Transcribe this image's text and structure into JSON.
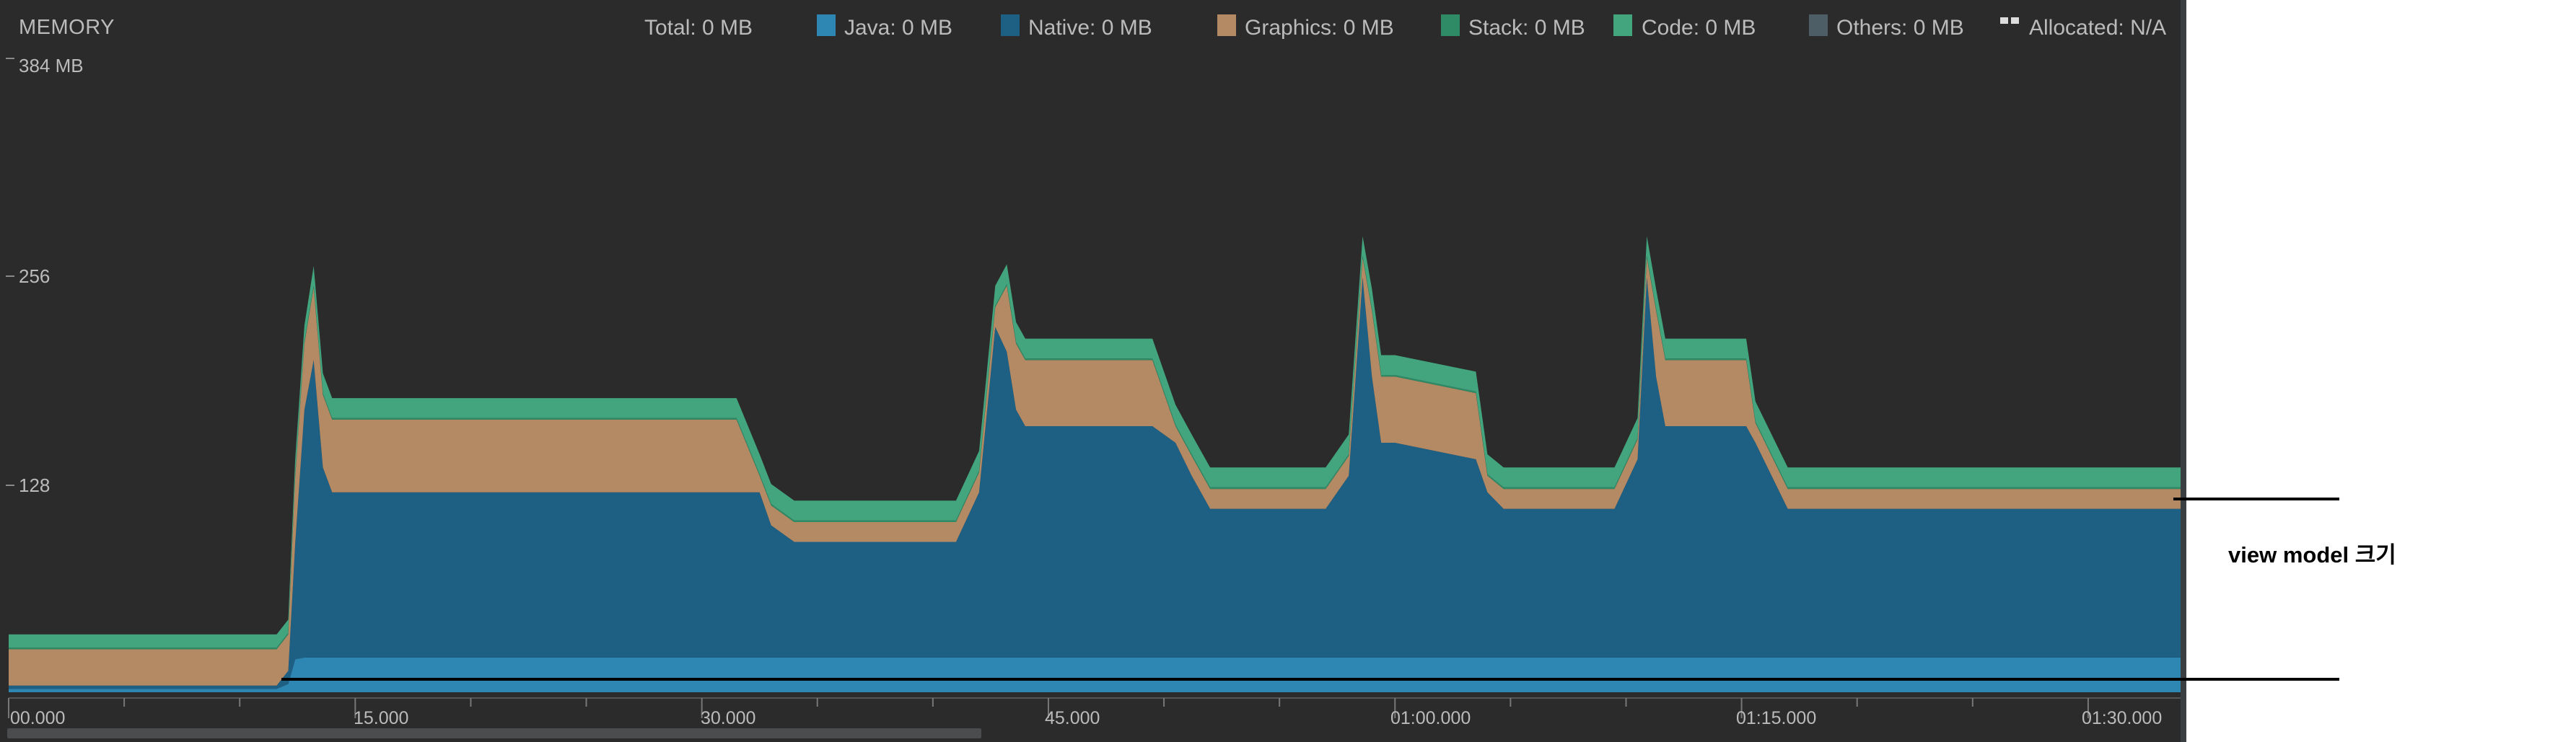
{
  "header": {
    "title": "MEMORY",
    "total_label": "Total: 0 MB",
    "java_label": "Java: 0 MB",
    "native_label": "Native: 0 MB",
    "graphics_label": "Graphics: 0 MB",
    "stack_label": "Stack: 0 MB",
    "code_label": "Code: 0 MB",
    "others_label": "Others: 0 MB",
    "allocated_label": "Allocated: N/A"
  },
  "colors": {
    "java": "#2e86b3",
    "native": "#1e5f84",
    "graphics": "#b48a64",
    "stack": "#2e8b66",
    "code": "#43a57e",
    "others": "#4d5e66",
    "background": "#2b2b2b"
  },
  "y_axis": {
    "top_label": "384 MB",
    "labels": [
      "256",
      "128"
    ]
  },
  "x_axis": {
    "labels": [
      "00.000",
      "15.000",
      "30.000",
      "45.000",
      "01:00.000",
      "01:15.000",
      "01:30.000"
    ]
  },
  "annotation": "view model 크기",
  "chart_data": {
    "type": "area",
    "stacked": true,
    "x_unit": "seconds",
    "y_unit": "MB",
    "ylim": [
      0,
      384
    ],
    "xlim": [
      0,
      94
    ],
    "x": [
      0,
      11.6,
      12.1,
      12.4,
      12.8,
      13.2,
      13.6,
      14.0,
      27.0,
      30.0,
      31.5,
      32.5,
      33.0,
      34.0,
      41.0,
      42.0,
      42.7,
      43.2,
      43.6,
      44.0,
      49.5,
      50.5,
      51.2,
      52.0,
      57.0,
      58.0,
      58.6,
      59.0,
      59.4,
      60.0,
      63.5,
      64.0,
      64.7,
      65.3,
      69.5,
      70.5,
      70.9,
      71.3,
      71.7,
      72.2,
      75.2,
      75.6,
      76.3,
      77.0,
      94.0
    ],
    "series": [
      {
        "name": "Java",
        "values": [
          2,
          2,
          5,
          20,
          21,
          21,
          21,
          21,
          21,
          21,
          21,
          21,
          21,
          21,
          21,
          21,
          21,
          21,
          21,
          21,
          21,
          21,
          21,
          21,
          21,
          21,
          21,
          21,
          21,
          21,
          21,
          21,
          21,
          21,
          21,
          21,
          21,
          21,
          21,
          21,
          21,
          21,
          21,
          21,
          21
        ]
      },
      {
        "name": "Native",
        "values": [
          2,
          2,
          8,
          70,
          150,
          180,
          115,
          100,
          100,
          100,
          100,
          100,
          80,
          70,
          70,
          100,
          200,
          185,
          150,
          140,
          140,
          130,
          110,
          90,
          90,
          110,
          230,
          170,
          130,
          130,
          120,
          100,
          90,
          90,
          90,
          120,
          230,
          170,
          140,
          140,
          140,
          130,
          110,
          90,
          90
        ]
      },
      {
        "name": "Graphics",
        "values": [
          22,
          22,
          22,
          40,
          40,
          44,
          44,
          44,
          44,
          44,
          44,
          10,
          12,
          12,
          12,
          12,
          12,
          40,
          40,
          40,
          40,
          10,
          12,
          12,
          12,
          12,
          12,
          40,
          40,
          40,
          40,
          10,
          12,
          12,
          12,
          12,
          12,
          40,
          40,
          40,
          40,
          12,
          12,
          12,
          12
        ]
      },
      {
        "name": "Stack",
        "values": [
          1,
          1,
          1,
          1,
          1,
          1,
          1,
          1,
          1,
          1,
          1,
          1,
          1,
          1,
          1,
          1,
          1,
          1,
          1,
          1,
          1,
          1,
          1,
          1,
          1,
          1,
          1,
          1,
          1,
          1,
          1,
          1,
          1,
          1,
          1,
          1,
          1,
          1,
          1,
          1,
          1,
          1,
          1,
          1,
          1
        ]
      },
      {
        "name": "Code",
        "values": [
          8,
          8,
          8,
          10,
          10,
          12,
          12,
          12,
          12,
          12,
          12,
          12,
          12,
          12,
          12,
          12,
          12,
          12,
          12,
          12,
          12,
          12,
          12,
          12,
          12,
          12,
          12,
          12,
          12,
          12,
          12,
          12,
          12,
          12,
          12,
          12,
          12,
          12,
          12,
          12,
          12,
          12,
          12,
          12,
          12
        ]
      }
    ],
    "reference_lines_mb": [
      117,
      8
    ]
  }
}
